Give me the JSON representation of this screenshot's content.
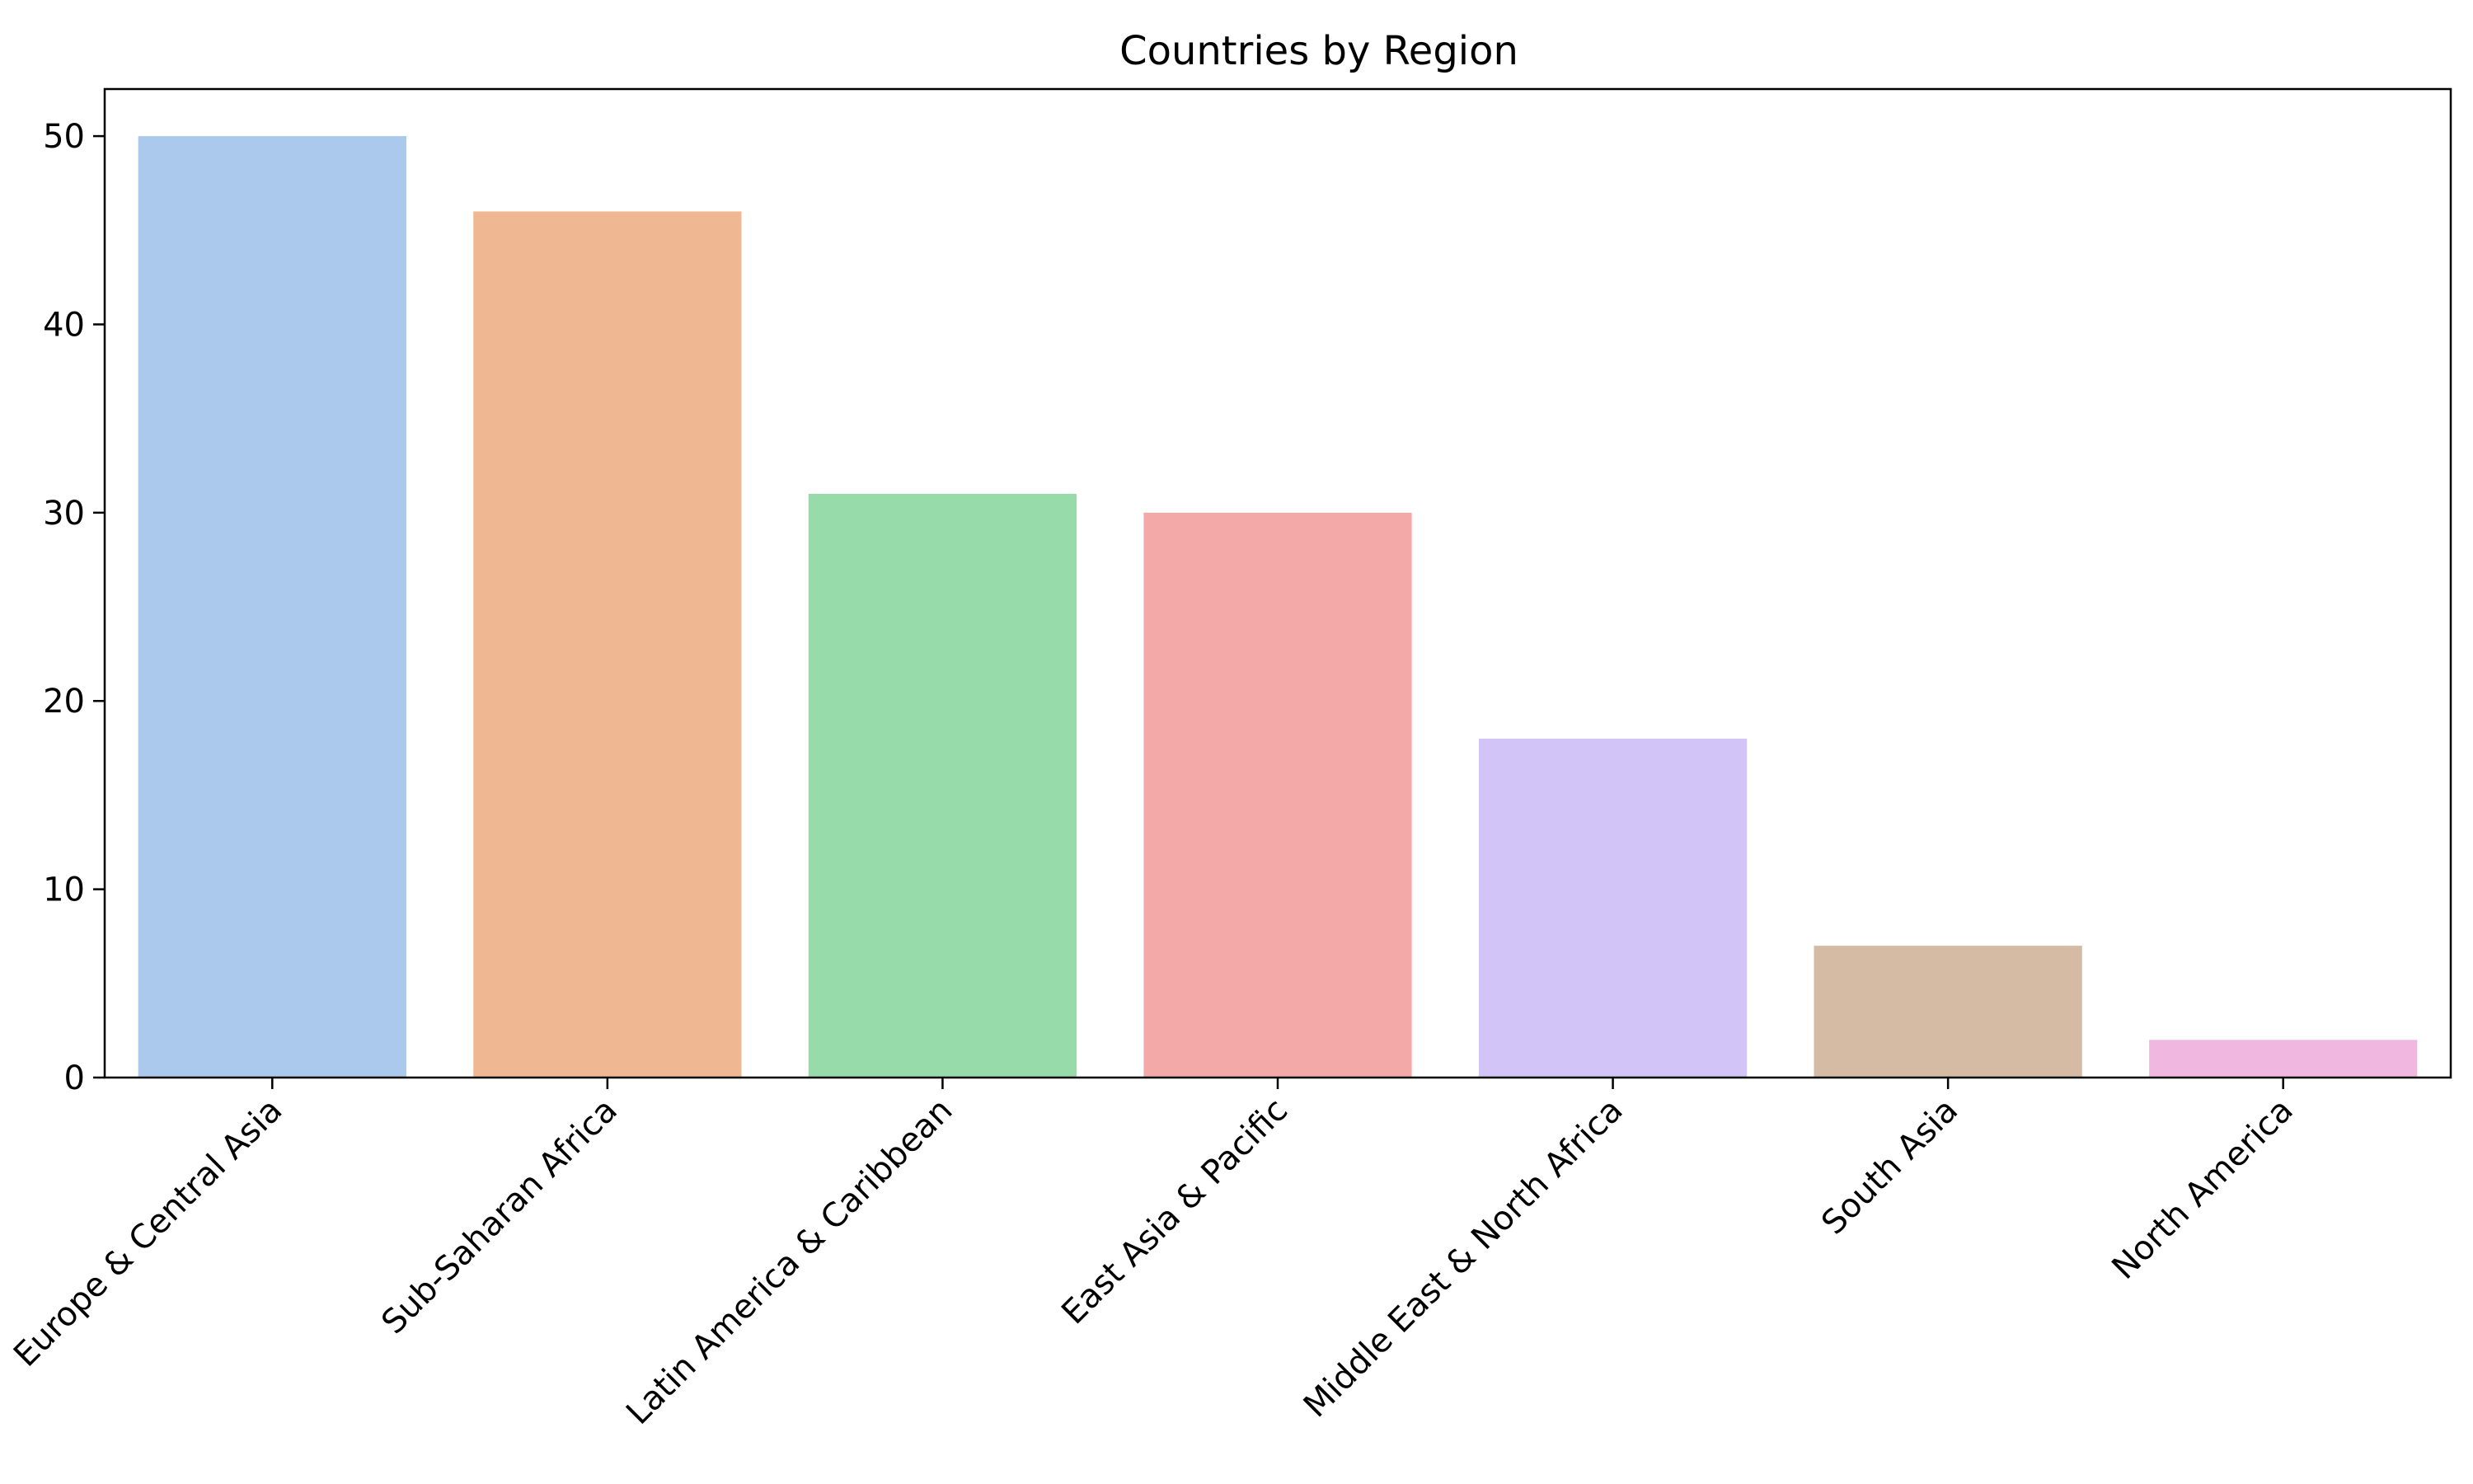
{
  "chart_data": {
    "type": "bar",
    "title": "Countries by Region",
    "xlabel": "",
    "ylabel": "",
    "categories": [
      "Europe & Central Asia",
      "Sub-Saharan Africa",
      "Latin America & Caribbean",
      "East Asia & Pacific",
      "Middle East & North Africa",
      "South Asia",
      "North America"
    ],
    "values": [
      50,
      46,
      31,
      30,
      18,
      7,
      2
    ],
    "colors": [
      "#abc9ed",
      "#f0b793",
      "#98dbaa",
      "#f2a9a8",
      "#d2c4f7",
      "#d5bba3",
      "#f0b8e1"
    ],
    "ylim": [
      0,
      52.5
    ],
    "yticks": [
      0,
      10,
      20,
      30,
      40,
      50
    ],
    "grid": false,
    "legend": "none"
  }
}
